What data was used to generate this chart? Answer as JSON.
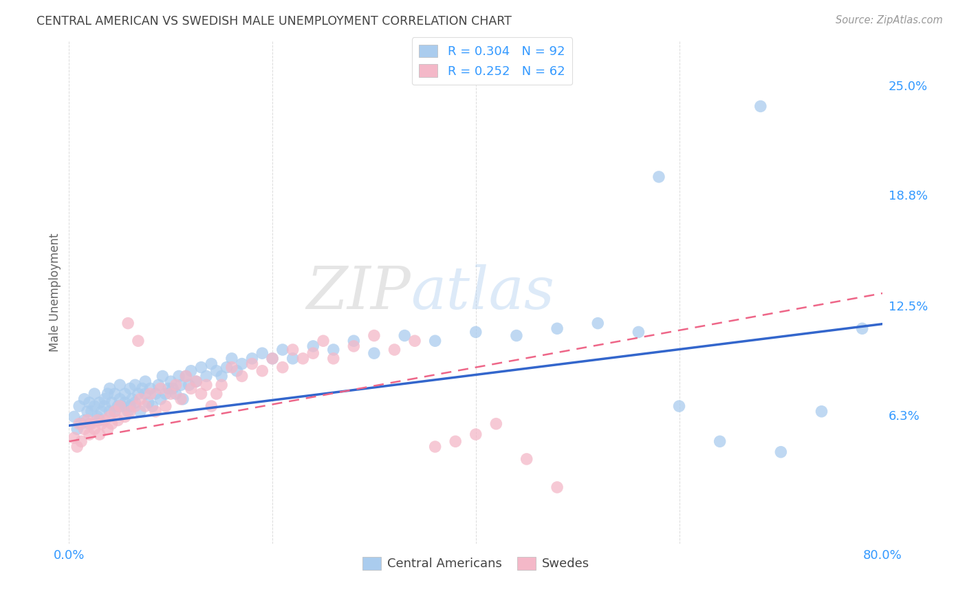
{
  "title": "CENTRAL AMERICAN VS SWEDISH MALE UNEMPLOYMENT CORRELATION CHART",
  "source": "Source: ZipAtlas.com",
  "ylabel": "Male Unemployment",
  "xlim": [
    0.0,
    0.8
  ],
  "ylim": [
    -0.01,
    0.275
  ],
  "background_color": "#ffffff",
  "grid_color": "#cccccc",
  "blue_color": "#aaccee",
  "pink_color": "#f4b8c8",
  "blue_line_color": "#3366cc",
  "pink_line_color": "#ee6688",
  "title_color": "#444444",
  "axis_label_color": "#666666",
  "tick_color": "#3399ff",
  "source_color": "#999999",
  "R_blue": 0.304,
  "N_blue": 92,
  "R_pink": 0.252,
  "N_pink": 62,
  "blue_intercept": 0.057,
  "blue_slope": 0.072,
  "pink_intercept": 0.048,
  "pink_slope": 0.105,
  "blue_points_x": [
    0.005,
    0.008,
    0.01,
    0.012,
    0.015,
    0.015,
    0.018,
    0.02,
    0.02,
    0.022,
    0.025,
    0.025,
    0.028,
    0.03,
    0.03,
    0.032,
    0.035,
    0.035,
    0.038,
    0.04,
    0.04,
    0.042,
    0.045,
    0.045,
    0.048,
    0.05,
    0.05,
    0.052,
    0.055,
    0.055,
    0.058,
    0.06,
    0.06,
    0.062,
    0.065,
    0.065,
    0.068,
    0.07,
    0.072,
    0.075,
    0.075,
    0.078,
    0.08,
    0.082,
    0.085,
    0.088,
    0.09,
    0.092,
    0.095,
    0.098,
    0.1,
    0.102,
    0.105,
    0.108,
    0.11,
    0.112,
    0.115,
    0.118,
    0.12,
    0.125,
    0.13,
    0.135,
    0.14,
    0.145,
    0.15,
    0.155,
    0.16,
    0.165,
    0.17,
    0.18,
    0.19,
    0.2,
    0.21,
    0.22,
    0.24,
    0.26,
    0.28,
    0.3,
    0.33,
    0.36,
    0.4,
    0.44,
    0.48,
    0.52,
    0.56,
    0.6,
    0.64,
    0.7,
    0.74,
    0.78,
    0.68,
    0.58
  ],
  "blue_points_y": [
    0.062,
    0.055,
    0.068,
    0.058,
    0.072,
    0.06,
    0.065,
    0.07,
    0.058,
    0.065,
    0.068,
    0.075,
    0.062,
    0.07,
    0.06,
    0.065,
    0.072,
    0.068,
    0.075,
    0.065,
    0.078,
    0.07,
    0.065,
    0.075,
    0.068,
    0.072,
    0.08,
    0.068,
    0.075,
    0.07,
    0.065,
    0.078,
    0.068,
    0.072,
    0.08,
    0.07,
    0.075,
    0.065,
    0.078,
    0.075,
    0.082,
    0.07,
    0.078,
    0.068,
    0.075,
    0.08,
    0.072,
    0.085,
    0.075,
    0.078,
    0.082,
    0.078,
    0.075,
    0.085,
    0.08,
    0.072,
    0.085,
    0.08,
    0.088,
    0.082,
    0.09,
    0.085,
    0.092,
    0.088,
    0.085,
    0.09,
    0.095,
    0.088,
    0.092,
    0.095,
    0.098,
    0.095,
    0.1,
    0.095,
    0.102,
    0.1,
    0.105,
    0.098,
    0.108,
    0.105,
    0.11,
    0.108,
    0.112,
    0.115,
    0.11,
    0.068,
    0.048,
    0.042,
    0.065,
    0.112,
    0.238,
    0.198
  ],
  "pink_points_x": [
    0.005,
    0.008,
    0.01,
    0.012,
    0.015,
    0.018,
    0.02,
    0.022,
    0.025,
    0.028,
    0.03,
    0.032,
    0.035,
    0.038,
    0.04,
    0.042,
    0.045,
    0.048,
    0.05,
    0.055,
    0.058,
    0.06,
    0.065,
    0.068,
    0.07,
    0.075,
    0.08,
    0.085,
    0.09,
    0.095,
    0.1,
    0.105,
    0.11,
    0.115,
    0.12,
    0.125,
    0.13,
    0.135,
    0.14,
    0.145,
    0.15,
    0.16,
    0.17,
    0.18,
    0.19,
    0.2,
    0.21,
    0.22,
    0.23,
    0.24,
    0.25,
    0.26,
    0.28,
    0.3,
    0.32,
    0.34,
    0.36,
    0.38,
    0.4,
    0.42,
    0.45,
    0.48
  ],
  "pink_points_y": [
    0.05,
    0.045,
    0.058,
    0.048,
    0.055,
    0.06,
    0.052,
    0.058,
    0.055,
    0.06,
    0.052,
    0.058,
    0.06,
    0.055,
    0.062,
    0.058,
    0.065,
    0.06,
    0.068,
    0.062,
    0.115,
    0.065,
    0.068,
    0.105,
    0.072,
    0.068,
    0.075,
    0.065,
    0.078,
    0.068,
    0.075,
    0.08,
    0.072,
    0.085,
    0.078,
    0.082,
    0.075,
    0.08,
    0.068,
    0.075,
    0.08,
    0.09,
    0.085,
    0.092,
    0.088,
    0.095,
    0.09,
    0.1,
    0.095,
    0.098,
    0.105,
    0.095,
    0.102,
    0.108,
    0.1,
    0.105,
    0.045,
    0.048,
    0.052,
    0.058,
    0.038,
    0.022
  ]
}
